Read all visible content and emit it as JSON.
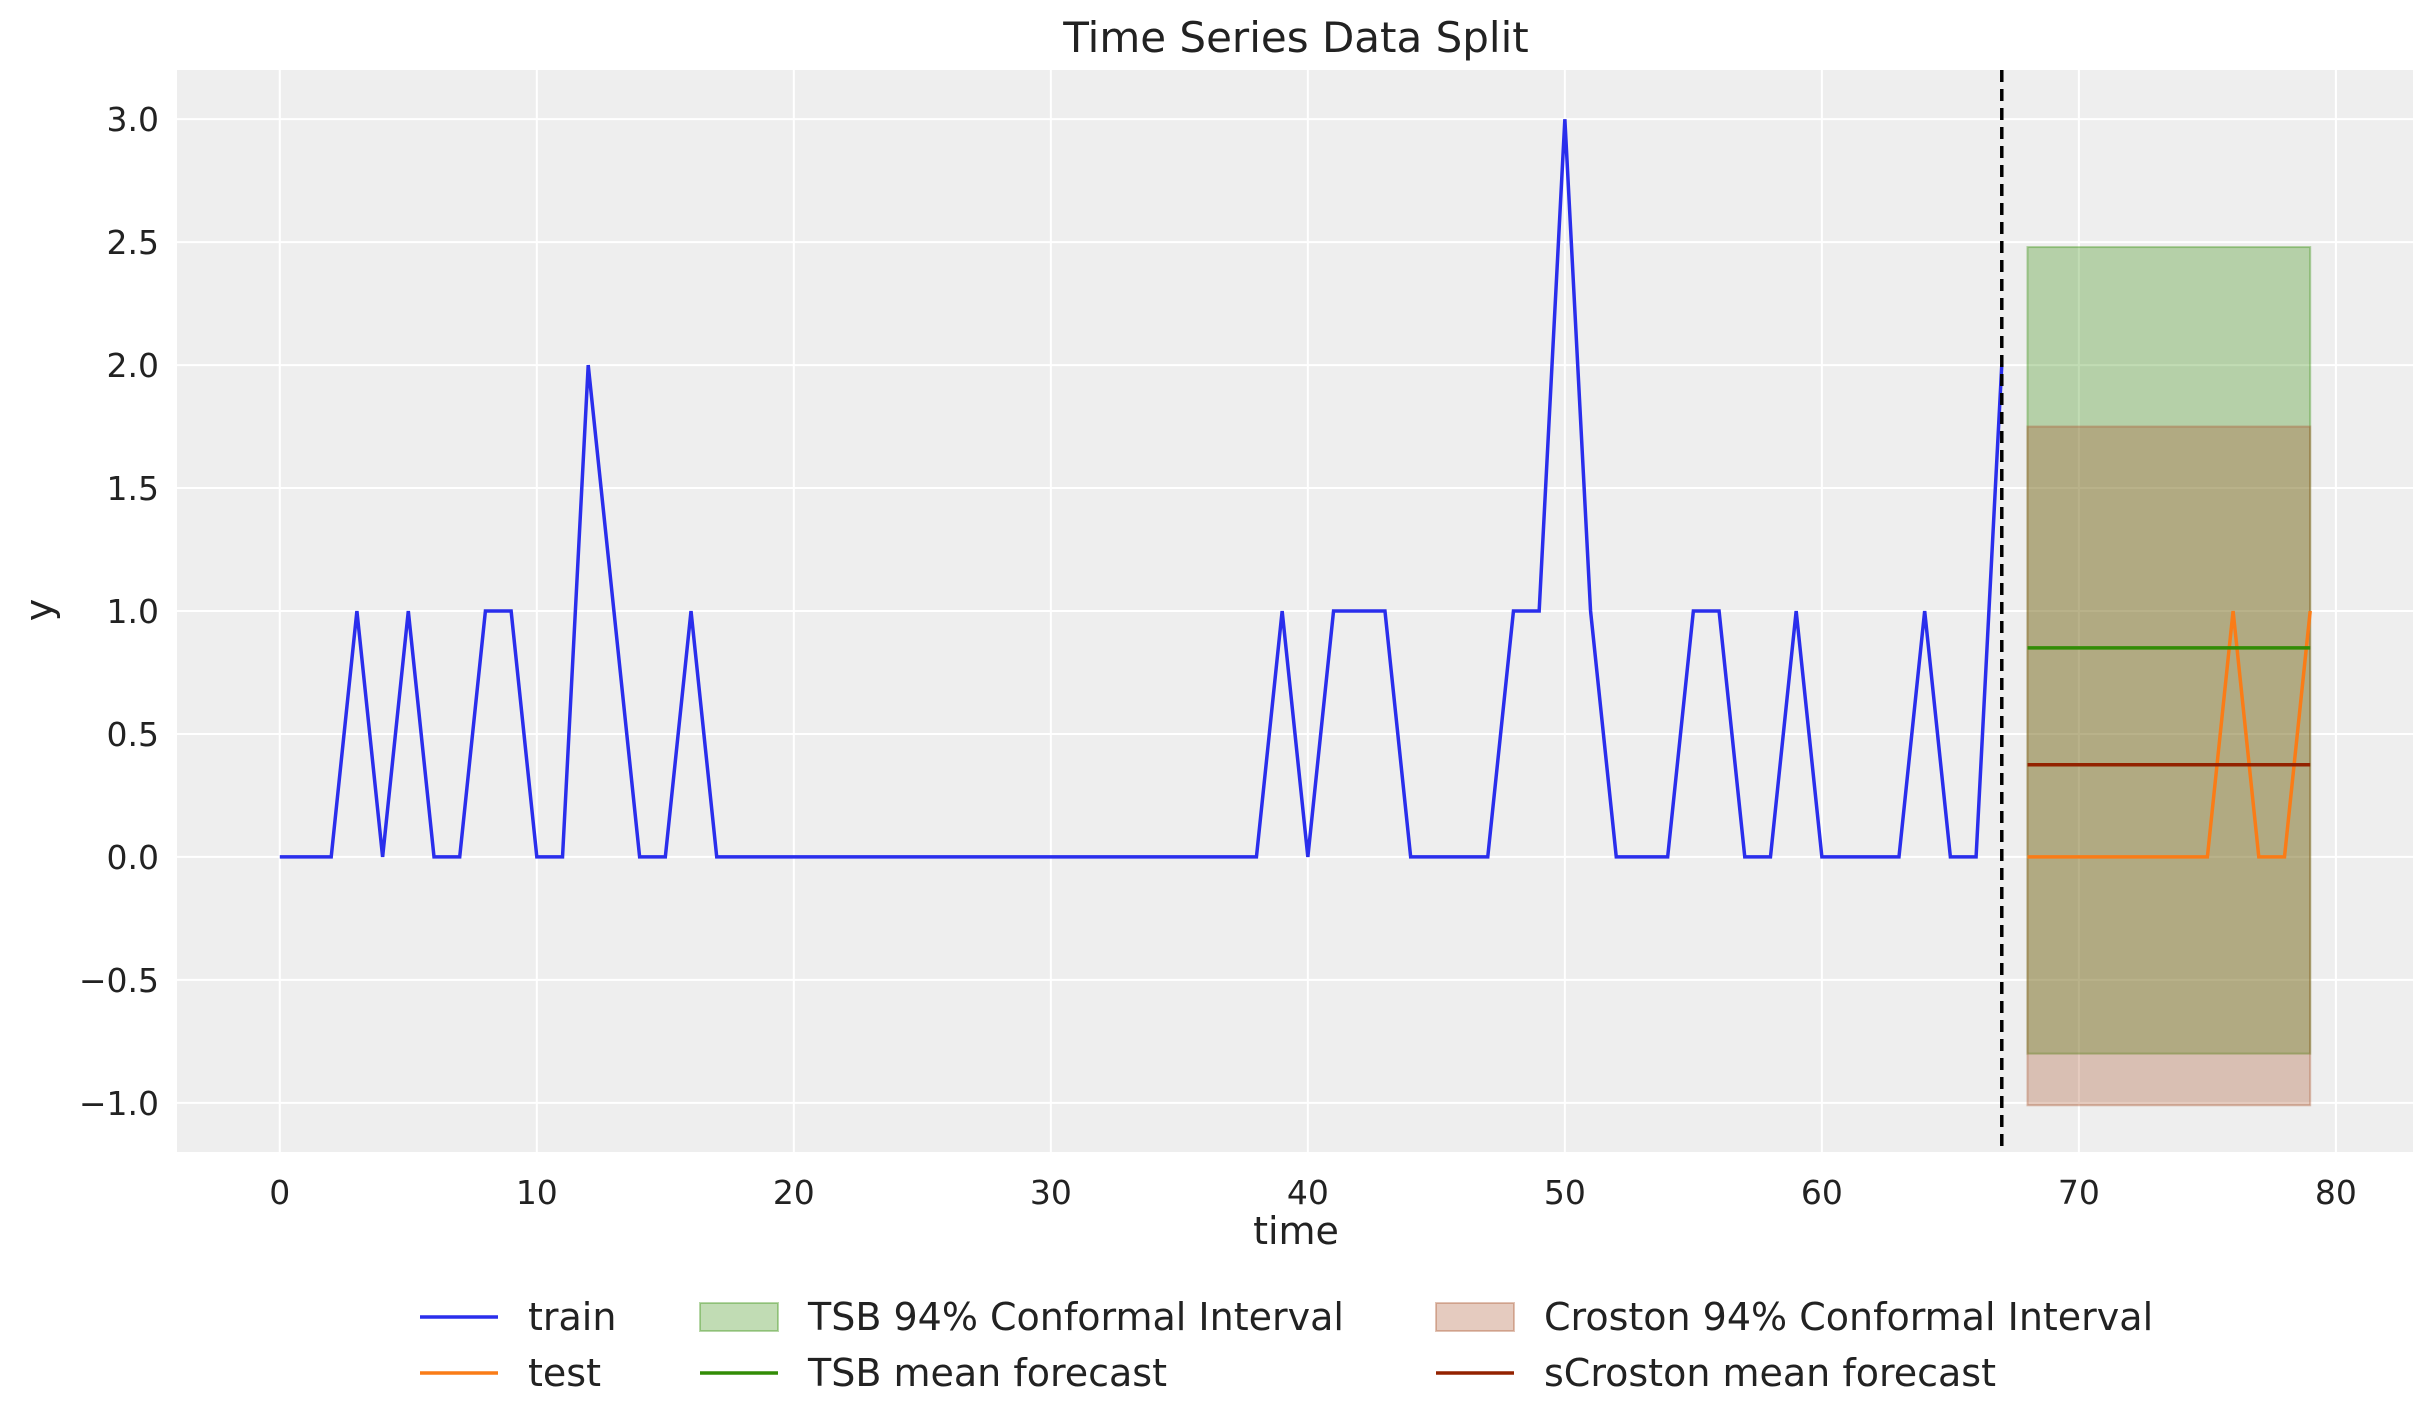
{
  "chart_data": {
    "type": "line",
    "title": "Time Series Data Split",
    "xlabel": "time",
    "ylabel": "y",
    "xlim": [
      -4,
      83
    ],
    "ylim": [
      -1.2,
      3.2
    ],
    "grid": true,
    "xticks": [
      0,
      10,
      20,
      30,
      40,
      50,
      60,
      70,
      80
    ],
    "xtick_labels": [
      "0",
      "10",
      "20",
      "30",
      "40",
      "50",
      "60",
      "70",
      "80"
    ],
    "yticks": [
      3.0,
      2.5,
      2.0,
      1.5,
      1.0,
      0.5,
      0.0,
      -0.5,
      -1.0
    ],
    "ytick_labels": [
      "3.0",
      "2.5",
      "2.0",
      "1.5",
      "1.0",
      "0.5",
      "0.0",
      "−0.5",
      "−1.0"
    ],
    "split_line": {
      "x": 67,
      "style": "dashed",
      "color": "#000000"
    },
    "series": [
      {
        "name": "train",
        "kind": "line",
        "color": "#2a2eec",
        "x": [
          0,
          1,
          2,
          3,
          4,
          5,
          6,
          7,
          8,
          9,
          10,
          11,
          12,
          13,
          14,
          15,
          16,
          17,
          18,
          19,
          20,
          21,
          22,
          23,
          24,
          25,
          26,
          27,
          28,
          29,
          30,
          31,
          32,
          33,
          34,
          35,
          36,
          37,
          38,
          39,
          40,
          41,
          42,
          43,
          44,
          45,
          46,
          47,
          48,
          49,
          50,
          51,
          52,
          53,
          54,
          55,
          56,
          57,
          58,
          59,
          60,
          61,
          62,
          63,
          64,
          65,
          66,
          67
        ],
        "y": [
          0,
          0,
          0,
          1,
          0,
          1,
          0,
          0,
          1,
          1,
          0,
          0,
          2,
          1,
          0,
          0,
          1,
          0,
          0,
          0,
          0,
          0,
          0,
          0,
          0,
          0,
          0,
          0,
          0,
          0,
          0,
          0,
          0,
          0,
          0,
          0,
          0,
          0,
          0,
          1,
          0,
          1,
          1,
          1,
          0,
          0,
          0,
          0,
          1,
          1,
          3,
          1,
          0,
          0,
          0,
          1,
          1,
          0,
          0,
          1,
          0,
          0,
          0,
          0,
          1,
          0,
          0,
          2
        ]
      },
      {
        "name": "test",
        "kind": "line",
        "color": "#fa7c17",
        "x": [
          68,
          69,
          70,
          71,
          72,
          73,
          74,
          75,
          76,
          77,
          78,
          79
        ],
        "y": [
          0,
          0,
          0,
          0,
          0,
          0,
          0,
          0,
          1,
          0,
          0,
          1
        ]
      },
      {
        "name": "TSB 94% Conformal Interval",
        "kind": "band",
        "color": "#328c06",
        "x_range": [
          68,
          79
        ],
        "lower": -0.8,
        "upper": 2.48
      },
      {
        "name": "TSB mean forecast",
        "kind": "hline",
        "color": "#328c06",
        "x_range": [
          68,
          79
        ],
        "y": 0.85
      },
      {
        "name": "Croston 94% Conformal Interval",
        "kind": "band",
        "color": "#a8532b",
        "x_range": [
          68,
          79
        ],
        "lower": -1.01,
        "upper": 1.75
      },
      {
        "name": "sCroston mean forecast",
        "kind": "hline",
        "color": "#932200",
        "x_range": [
          68,
          79
        ],
        "y": 0.375
      }
    ],
    "legend": {
      "placement": "bottom-center",
      "columns": 3,
      "entries": [
        {
          "label": "train",
          "kind": "line",
          "color": "#2a2eec"
        },
        {
          "label": "test",
          "kind": "line",
          "color": "#fa7c17"
        },
        {
          "label": "TSB 94% Conformal Interval",
          "kind": "patch",
          "color": "#328c06"
        },
        {
          "label": "TSB mean forecast",
          "kind": "line",
          "color": "#328c06"
        },
        {
          "label": "Croston 94% Conformal Interval",
          "kind": "patch",
          "color": "#a8532b"
        },
        {
          "label": "sCroston mean forecast",
          "kind": "line",
          "color": "#932200"
        }
      ]
    },
    "colors": {
      "plot_background": "#eeeeee",
      "grid": "#ffffff"
    }
  }
}
